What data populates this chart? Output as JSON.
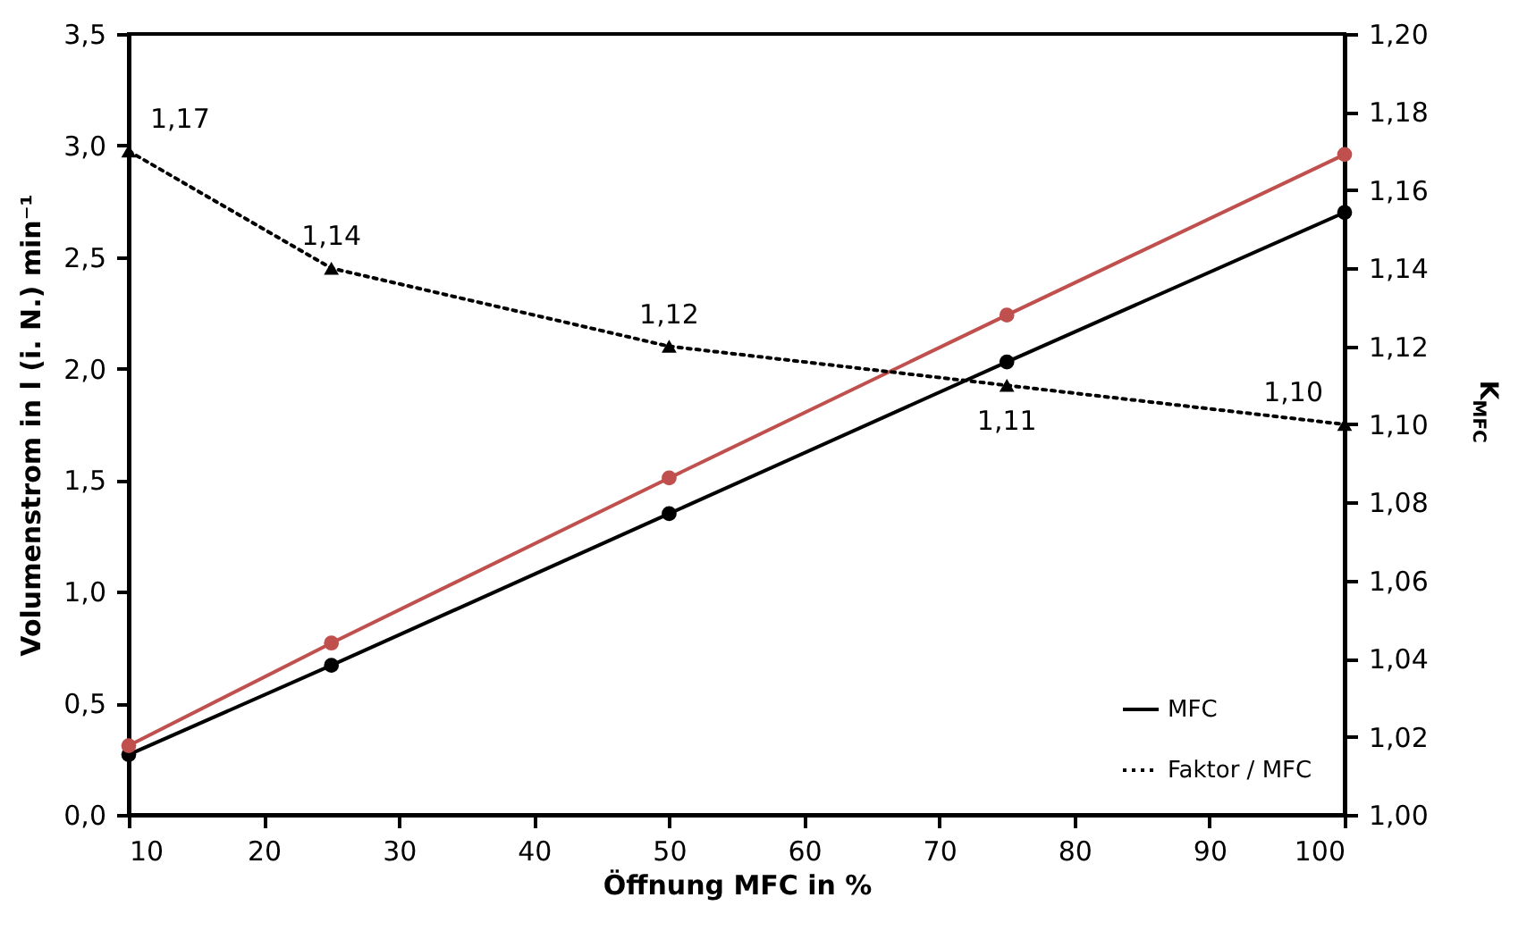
{
  "chart_data": {
    "type": "line",
    "xlabel": "Öffnung MFC in %",
    "ylabel": "Volumenstrom in l (i. N.) min⁻¹",
    "y2label": "K$_{MFC}$",
    "x": [
      10,
      25,
      50,
      75,
      100
    ],
    "series": [
      {
        "name": "MFC",
        "color": "#000000",
        "marker": "circle",
        "line_style": "solid",
        "values": [
          0.27,
          0.67,
          1.35,
          2.03,
          2.7
        ]
      },
      {
        "color": "#c0504d",
        "marker": "circle",
        "line_style": "solid",
        "values": [
          0.31,
          0.77,
          1.51,
          2.24,
          2.96
        ]
      },
      {
        "name": "Faktor / MFC",
        "color": "#000000",
        "marker": "triangle",
        "line_style": "dotted",
        "axis": "y2",
        "values": [
          1.17,
          1.14,
          1.12,
          1.11,
          1.1
        ],
        "value_labels": [
          "1,17",
          "1,14",
          "1,12",
          "1,11",
          "1,10"
        ]
      }
    ],
    "xlim": [
      10,
      100
    ],
    "xticks": [
      10,
      20,
      30,
      40,
      50,
      60,
      70,
      80,
      90,
      100
    ],
    "ylim": [
      0,
      3.5
    ],
    "yticks": [
      {
        "value": 0,
        "label": "0,0"
      },
      {
        "value": 0.5,
        "label": "0,5"
      },
      {
        "value": 1,
        "label": "1,0"
      },
      {
        "value": 1.5,
        "label": "1,5"
      },
      {
        "value": 2,
        "label": "2,0"
      },
      {
        "value": 2.5,
        "label": "2,5"
      },
      {
        "value": 3,
        "label": "3,0"
      },
      {
        "value": 3.5,
        "label": "3,5"
      }
    ],
    "y2lim": [
      1.0,
      1.2
    ],
    "y2ticks": [
      {
        "value": 1.0,
        "label": "1,00"
      },
      {
        "value": 1.02,
        "label": "1,02"
      },
      {
        "value": 1.04,
        "label": "1,04"
      },
      {
        "value": 1.06,
        "label": "1,06"
      },
      {
        "value": 1.08,
        "label": "1,08"
      },
      {
        "value": 1.1,
        "label": "1,10"
      },
      {
        "value": 1.12,
        "label": "1,12"
      },
      {
        "value": 1.14,
        "label": "1,14"
      },
      {
        "value": 1.16,
        "label": "1,16"
      },
      {
        "value": 1.18,
        "label": "1,18"
      },
      {
        "value": 1.2,
        "label": "1,20"
      }
    ],
    "grid": false,
    "legend": "bottom right"
  }
}
